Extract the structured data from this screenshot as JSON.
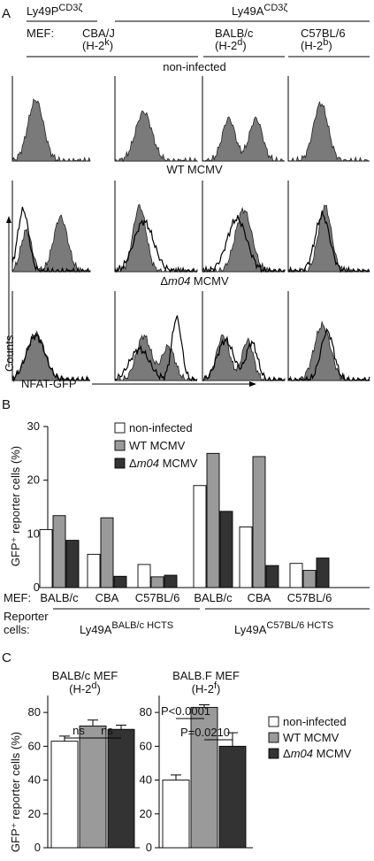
{
  "panel_a": {
    "label": "A",
    "groups": [
      {
        "name": "Ly49P",
        "sup": "CD3ζ"
      },
      {
        "name": "Ly49A",
        "sup": "CD3ζ"
      }
    ],
    "mef_label": "MEF:",
    "columns": [
      {
        "strain": "CBA/J",
        "haplo": "(H-2",
        "hsup": "k",
        "close": ")"
      },
      {
        "strain": "BALB/c",
        "haplo": "(H-2",
        "hsup": "d",
        "close": ")"
      },
      {
        "strain": "C57BL/6",
        "haplo": "(H-2",
        "hsup": "b",
        "close": ")"
      }
    ],
    "rows": [
      {
        "title": "non-infected",
        "italic": "",
        "rest": ""
      },
      {
        "title": "WT MCMV",
        "italic": "",
        "rest": ""
      },
      {
        "title": "Δ",
        "italic": "m04",
        "rest": " MCMV"
      }
    ],
    "y_axis_label": "Counts",
    "x_axis_label": "NFAT-GFP"
  },
  "chart_data": [
    {
      "type": "bar",
      "panel": "B",
      "ylabel": "GFP⁺ reporter cells (%)",
      "ylim": [
        0,
        30
      ],
      "yticks": [
        0,
        10,
        20,
        30
      ],
      "mef_label": "MEF:",
      "reporter_label": "Reporter",
      "reporter_label2": "cells:",
      "categories": [
        "BALB/c",
        "CBA",
        "C57BL/6",
        "BALB/c",
        "CBA",
        "C57BL/6"
      ],
      "reporter_groups": [
        {
          "name": "Ly49A",
          "sup": "BALB/c HCTS"
        },
        {
          "name": "Ly49A",
          "sup": "C57BL/6 HCTS"
        }
      ],
      "legend_position": "top-left",
      "series": [
        {
          "name": "non-infected",
          "color": "#ffffff",
          "values": [
            10.8,
            6.2,
            4.3,
            19.0,
            11.3,
            4.5
          ]
        },
        {
          "name": "WT MCMV",
          "color": "#9a9a9a",
          "values": [
            13.4,
            13.0,
            2.0,
            25.0,
            24.4,
            3.2
          ]
        },
        {
          "name": "Δ",
          "italic": "m04",
          "rest": " MCMV",
          "color": "#333333",
          "values": [
            8.8,
            2.1,
            2.3,
            14.2,
            4.1,
            5.5
          ]
        }
      ]
    },
    {
      "type": "bar",
      "panel": "C",
      "ylabel": "GFP⁺ reporter cells (%)",
      "ylim": [
        0,
        90
      ],
      "yticks": [
        0,
        20,
        40,
        60,
        80
      ],
      "legend_position": "right",
      "legend": [
        {
          "name": "non-infected",
          "color": "#ffffff"
        },
        {
          "name": "WT MCMV",
          "color": "#9a9a9a"
        },
        {
          "name": "Δ",
          "italic": "m04",
          "rest": " MCMV",
          "color": "#333333"
        }
      ],
      "subcharts": [
        {
          "title": "BALB/c MEF",
          "haplo": "(H-2",
          "hsup": "d",
          "close": ")",
          "values": [
            63,
            72,
            70
          ],
          "errors": [
            3,
            3.5,
            2.5
          ],
          "annotations": [
            "ns",
            "ns"
          ]
        },
        {
          "title": "BALB.F MEF",
          "haplo": "(H-2",
          "hsup": "f",
          "close": ")",
          "values": [
            40,
            83,
            60
          ],
          "errors": [
            3,
            1.5,
            8
          ],
          "annotations": [
            "P<0.0001",
            "P=0.0210"
          ]
        }
      ]
    }
  ]
}
